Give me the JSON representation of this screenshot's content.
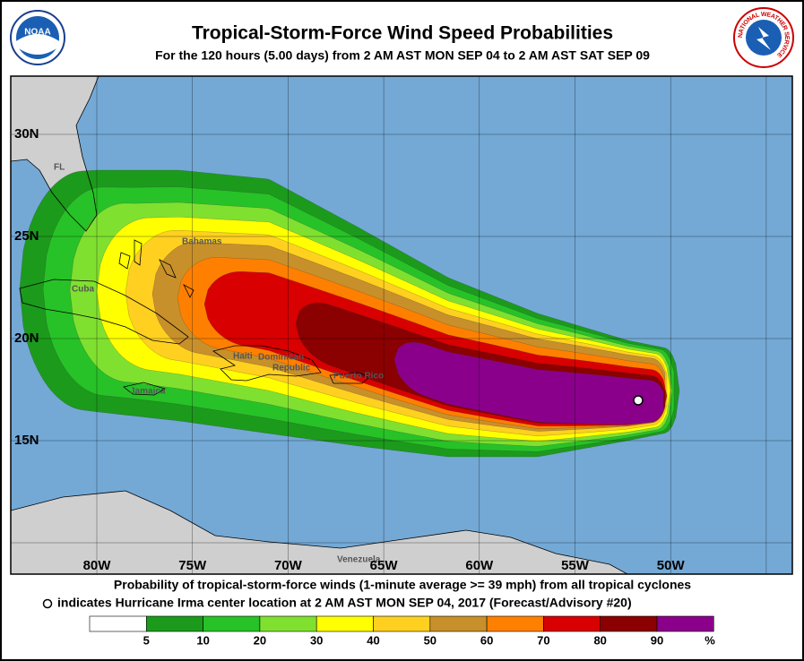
{
  "header": {
    "title": "Tropical-Storm-Force Wind Speed Probabilities",
    "subtitle": "For the 120 hours (5.00 days) from 2 AM AST MON SEP 04 to 2 AM AST SAT SEP 09",
    "logos": {
      "left": "NOAA",
      "right": "NATIONAL WEATHER SERVICE"
    }
  },
  "map": {
    "lat_labels": [
      "30N",
      "25N",
      "20N",
      "15N"
    ],
    "lon_labels": [
      "80W",
      "75W",
      "70W",
      "65W",
      "60W",
      "55W",
      "50W"
    ],
    "places": {
      "fl": "FL",
      "bahamas": "Bahamas",
      "cuba": "Cuba",
      "haiti": "Haiti",
      "dominican_republic": [
        "Dominican",
        "Republic"
      ],
      "puerto_rico": "Puerto Rico",
      "jamaica": "Jamaica",
      "venezuela": "Venezuela"
    }
  },
  "footer": {
    "line1": "Probability of tropical-storm-force winds (1-minute average >= 39 mph) from all tropical cyclones",
    "line2": "indicates Hurricane Irma center location at 2 AM AST MON SEP 04, 2017 (Forecast/Advisory #20)"
  },
  "legend": {
    "colors": [
      "#ffffff",
      "#1c9a1c",
      "#27c227",
      "#80e030",
      "#ffff00",
      "#ffd020",
      "#c8902a",
      "#ff8000",
      "#d80000",
      "#8b0000",
      "#8b008b"
    ],
    "labels": [
      "5",
      "10",
      "20",
      "30",
      "40",
      "50",
      "60",
      "70",
      "80",
      "90"
    ],
    "unit": "%"
  }
}
